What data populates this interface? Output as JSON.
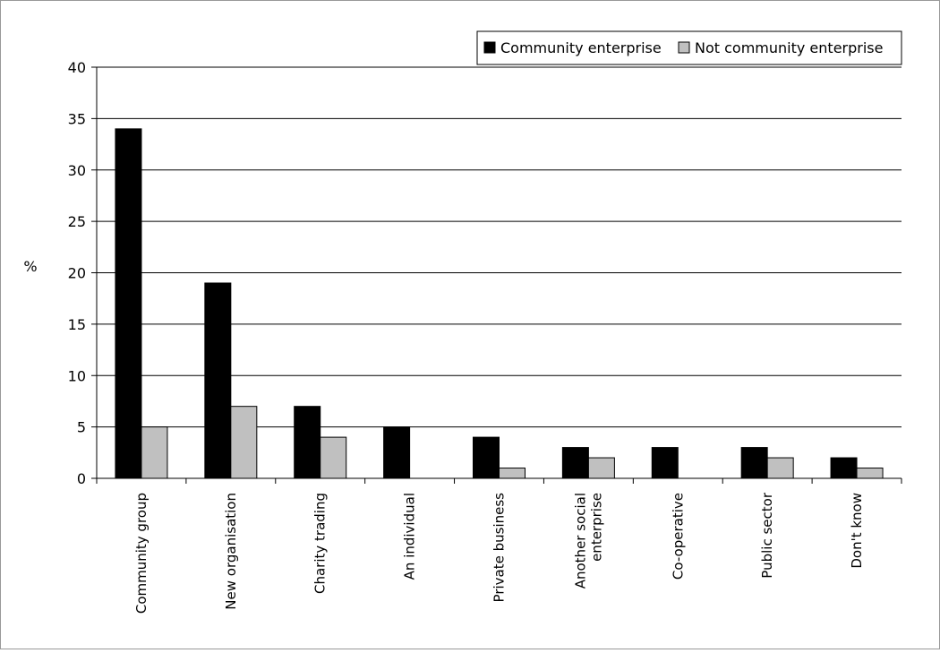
{
  "chart_data": {
    "type": "bar",
    "title": "",
    "xlabel": "",
    "ylabel": "%",
    "ylim": [
      0,
      40
    ],
    "yticks": [
      0,
      5,
      10,
      15,
      20,
      25,
      30,
      35,
      40
    ],
    "grid": true,
    "legend_position": "top-right",
    "categories": [
      [
        "Community group"
      ],
      [
        "New organisation"
      ],
      [
        "Charity trading"
      ],
      [
        "An individual"
      ],
      [
        "Private business"
      ],
      [
        "Another social",
        "enterprise"
      ],
      [
        "Co-operative"
      ],
      [
        "Public sector"
      ],
      [
        "Don't know"
      ]
    ],
    "series": [
      {
        "name": "Community enterprise",
        "color": "#000000",
        "values": [
          34,
          19,
          7,
          5,
          4,
          3,
          3,
          3,
          2
        ]
      },
      {
        "name": "Not community enterprise",
        "color": "#c0c0c0",
        "values": [
          5,
          7,
          4,
          0,
          1,
          2,
          0,
          2,
          1
        ]
      }
    ]
  }
}
